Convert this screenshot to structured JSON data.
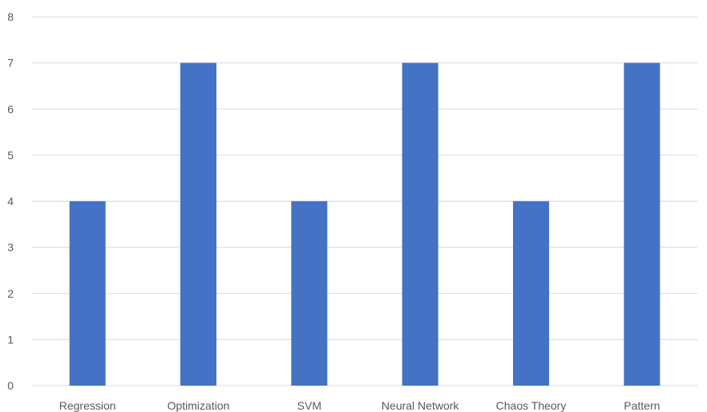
{
  "chart_data": {
    "type": "bar",
    "categories": [
      "Regression",
      "Optimization",
      "SVM",
      "Neural Network",
      "Chaos Theory",
      "Pattern"
    ],
    "values": [
      4,
      7,
      4,
      7,
      4,
      7
    ],
    "title": "",
    "xlabel": "",
    "ylabel": "",
    "ylim": [
      0,
      8
    ],
    "yticks": [
      0,
      1,
      2,
      3,
      4,
      5,
      6,
      7,
      8
    ],
    "grid": true,
    "legend": "none",
    "bar_color": "#4472C4",
    "grid_color": "#d9d9d9",
    "label_color": "#595959"
  }
}
